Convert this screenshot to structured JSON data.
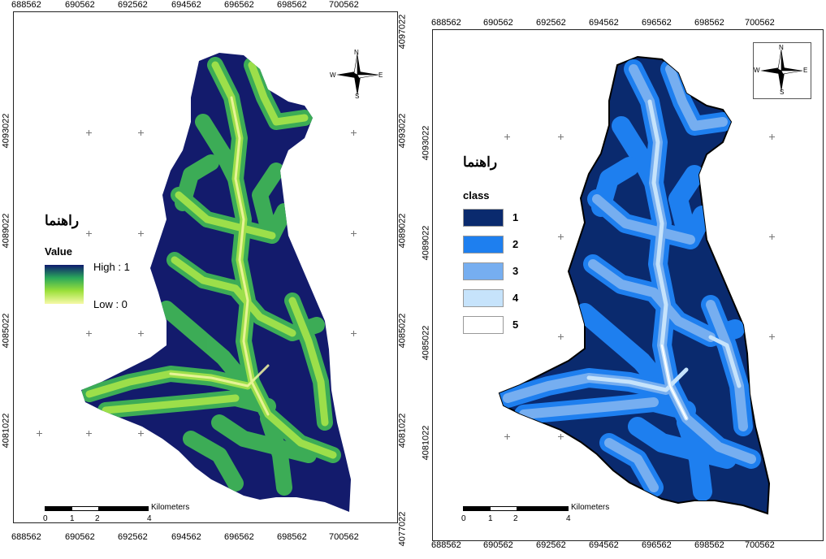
{
  "left_map": {
    "legend_title": "راهنما",
    "legend_subtitle": "Value",
    "high_label": "High : 1",
    "low_label": "Low : 0",
    "gradient_colors": [
      "#0e1a6e",
      "#2aa85a",
      "#9be03a",
      "#f6f9a8"
    ],
    "background_color": "#131b6c",
    "x_ticks": [
      "688562",
      "690562",
      "692562",
      "694562",
      "696562",
      "698562",
      "700562"
    ],
    "y_ticks_left": [
      "4093022",
      "4089022",
      "4085022",
      "4081022"
    ],
    "y_ticks_right": [
      "4097022",
      "4093022",
      "4089022",
      "4085022",
      "4081022",
      "4077022"
    ],
    "scale_numbers": [
      "0",
      "1",
      "2",
      "4"
    ],
    "scale_unit": "Kilometers",
    "compass": {
      "n": "N",
      "s": "S",
      "e": "E",
      "w": "W"
    }
  },
  "right_map": {
    "legend_title": "راهنما",
    "legend_subtitle": "class",
    "classes": [
      {
        "label": "1",
        "color": "#0a2a6e"
      },
      {
        "label": "2",
        "color": "#1e7fef"
      },
      {
        "label": "3",
        "color": "#76aef0"
      },
      {
        "label": "4",
        "color": "#c6e3fb"
      },
      {
        "label": "5",
        "color": "#ffffff"
      }
    ],
    "x_ticks": [
      "688562",
      "690562",
      "692562",
      "694562",
      "696562",
      "698562",
      "700562"
    ],
    "y_ticks_left": [
      "4093022",
      "4089022",
      "4085022",
      "4081022"
    ],
    "scale_numbers": [
      "0",
      "1",
      "2",
      "4"
    ],
    "scale_unit": "Kilometers",
    "compass": {
      "n": "N",
      "s": "S",
      "e": "E",
      "w": "W"
    }
  }
}
